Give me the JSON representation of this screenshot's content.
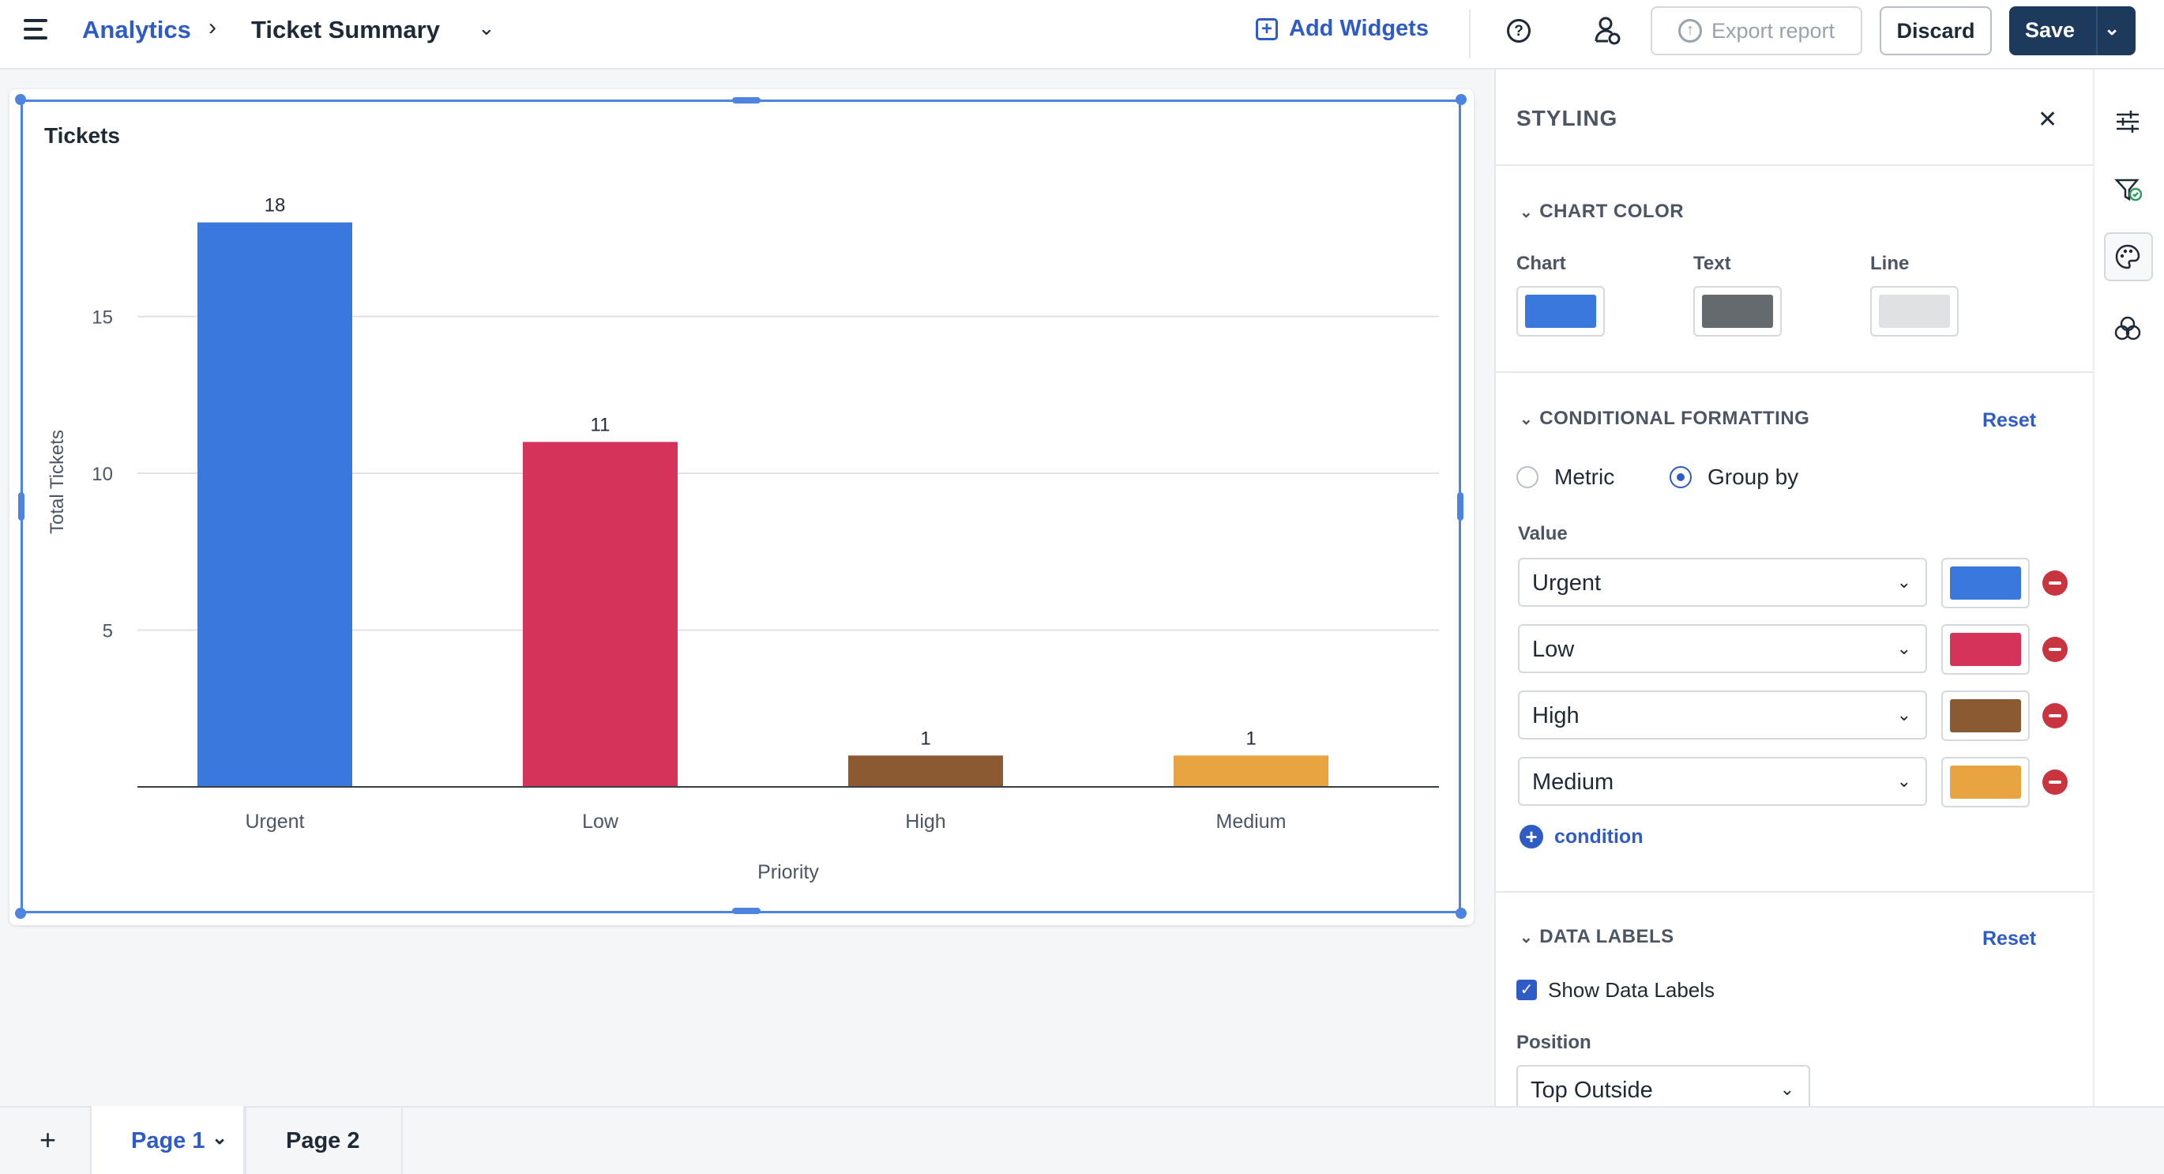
{
  "header": {
    "breadcrumb_root": "Analytics",
    "breadcrumb_sep": "›",
    "title": "Ticket Summary",
    "add_widgets": "Add Widgets",
    "export_report": "Export report",
    "discard": "Discard",
    "save": "Save"
  },
  "widget": {
    "title": "Tickets"
  },
  "chart_data": {
    "type": "bar",
    "categories": [
      "Urgent",
      "Low",
      "High",
      "Medium"
    ],
    "values": [
      18,
      11,
      1,
      1
    ],
    "colors": [
      "#3a78dd",
      "#d6335a",
      "#8b5a33",
      "#e8a441"
    ],
    "xlabel": "Priority",
    "ylabel": "Total Tickets",
    "yticks": [
      5,
      10,
      15
    ],
    "ylim": [
      0,
      19.5
    ],
    "grid": true,
    "data_labels": true
  },
  "panel": {
    "heading": "STYLING",
    "chart_color": {
      "heading": "CHART COLOR",
      "items": [
        {
          "label": "Chart",
          "color": "#3a78dd"
        },
        {
          "label": "Text",
          "color": "#646a6e"
        },
        {
          "label": "Line",
          "color": "#dfe1e3"
        }
      ]
    },
    "conditional": {
      "heading": "CONDITIONAL FORMATTING",
      "reset": "Reset",
      "radio_metric": "Metric",
      "radio_groupby": "Group by",
      "selected": "Group by",
      "value_label": "Value",
      "rows": [
        {
          "value": "Urgent",
          "color": "#3a78dd"
        },
        {
          "value": "Low",
          "color": "#d6335a"
        },
        {
          "value": "High",
          "color": "#8b5a33"
        },
        {
          "value": "Medium",
          "color": "#e8a441"
        }
      ],
      "add_condition": "condition"
    },
    "data_labels": {
      "heading": "DATA LABELS",
      "reset": "Reset",
      "show_label": "Show Data Labels",
      "show_checked": true,
      "position_label": "Position",
      "position_value": "Top Outside"
    }
  },
  "pages": {
    "tabs": [
      "Page 1",
      "Page 2"
    ],
    "active": "Page 1"
  }
}
